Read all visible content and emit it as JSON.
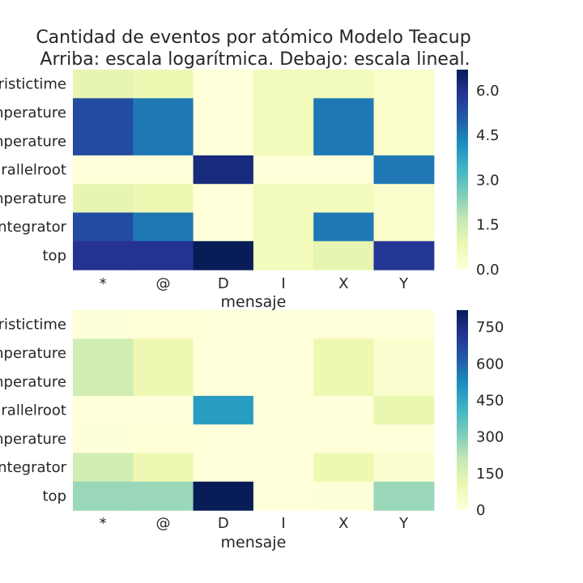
{
  "title_line1": "Cantidad de eventos por atómico Modelo Teacup",
  "title_line2": "Arriba: escala logarítmica. Debajo: escala lineal.",
  "colors": {
    "colormap": "YlGnBu",
    "background": "#ffffff",
    "text": "#262626"
  },
  "chart_data": [
    {
      "type": "heatmap",
      "scale": "log",
      "xlabel": "mensaje",
      "ylabel": "",
      "x_categories": [
        "*",
        "@",
        "D",
        "I",
        "X",
        "Y"
      ],
      "y_categories": [
        "eristictime",
        "mperature",
        "mperature",
        "arallelroot",
        "mperature",
        "integrator",
        "top"
      ],
      "values": [
        [
          1.0,
          0.8,
          0.0,
          0.6,
          0.6,
          0.3
        ],
        [
          5.4,
          4.6,
          0.0,
          0.6,
          4.6,
          0.3
        ],
        [
          5.4,
          4.6,
          0.0,
          0.6,
          4.6,
          0.3
        ],
        [
          0.0,
          0.0,
          6.2,
          0.0,
          0.0,
          4.6
        ],
        [
          1.0,
          0.8,
          0.0,
          0.6,
          0.6,
          0.3
        ],
        [
          5.4,
          4.6,
          0.0,
          0.6,
          4.6,
          0.3
        ],
        [
          5.9,
          5.9,
          6.7,
          0.6,
          1.0,
          5.8
        ]
      ],
      "vmin": 0,
      "vmax": 6.7,
      "colorbar_ticks": [
        "0.0",
        "1.5",
        "3.0",
        "4.5",
        "6.0"
      ],
      "colorbar_tick_values": [
        0,
        1.5,
        3.0,
        4.5,
        6.0
      ]
    },
    {
      "type": "heatmap",
      "scale": "linear",
      "xlabel": "mensaje",
      "ylabel": "",
      "x_categories": [
        "*",
        "@",
        "D",
        "I",
        "X",
        "Y"
      ],
      "y_categories": [
        "eristictime",
        "mperature",
        "mperature",
        "arallelroot",
        "mperature",
        "integrator",
        "top"
      ],
      "values": [
        [
          3,
          2,
          0,
          1,
          1,
          0
        ],
        [
          180,
          100,
          0,
          1,
          100,
          30
        ],
        [
          180,
          100,
          0,
          1,
          100,
          30
        ],
        [
          0,
          0,
          480,
          0,
          0,
          110
        ],
        [
          3,
          2,
          0,
          1,
          1,
          0
        ],
        [
          180,
          100,
          0,
          1,
          100,
          30
        ],
        [
          270,
          270,
          820,
          1,
          3,
          270
        ]
      ],
      "vmin": 0,
      "vmax": 820,
      "colorbar_ticks": [
        "0",
        "150",
        "300",
        "450",
        "600",
        "750"
      ],
      "colorbar_tick_values": [
        0,
        150,
        300,
        450,
        600,
        750
      ]
    }
  ]
}
